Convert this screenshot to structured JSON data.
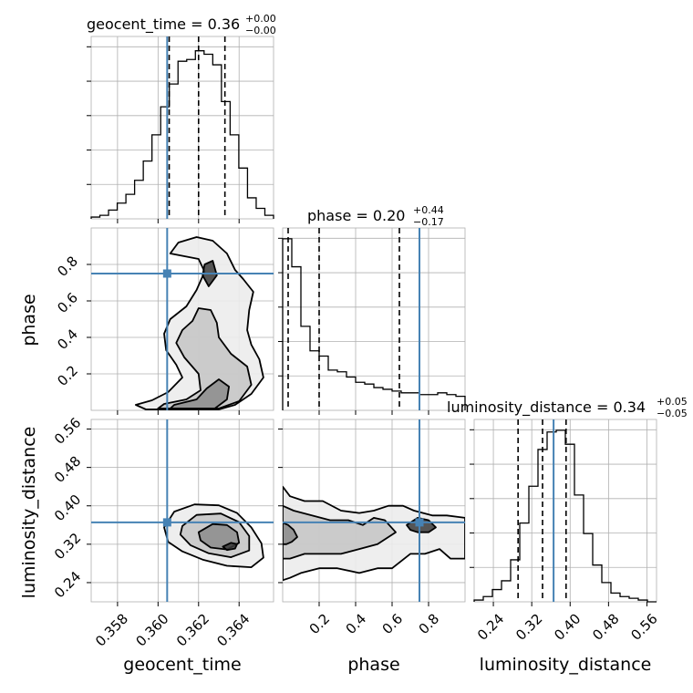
{
  "chart_data": {
    "type": "corner",
    "truth_color": "#4682b4",
    "hist_color": "#000000",
    "parameters": [
      {
        "name": "geocent_time",
        "title_prefix": "geocent_time = 0.36",
        "title_sup": "+0.00",
        "title_sub": "−0.00",
        "range": [
          0.3567,
          0.3657
        ],
        "ticks": [
          0.358,
          0.36,
          0.362,
          0.364
        ],
        "tick_labels": [
          "0.358",
          "0.360",
          "0.362",
          "0.364"
        ],
        "truth": 0.36045,
        "quantiles": [
          0.36055,
          0.362,
          0.3633
        ],
        "hist": [
          0.01,
          0.02,
          0.05,
          0.09,
          0.14,
          0.22,
          0.33,
          0.48,
          0.64,
          0.77,
          0.9,
          0.91,
          0.96,
          0.94,
          0.88,
          0.67,
          0.48,
          0.29,
          0.12,
          0.06,
          0.02
        ]
      },
      {
        "name": "phase",
        "title_prefix": "phase = 0.20",
        "title_sup": "+0.44",
        "title_sub": "−0.17",
        "range": [
          0.0,
          1.0
        ],
        "ticks": [
          0.2,
          0.4,
          0.6,
          0.8
        ],
        "tick_labels": [
          "0.2",
          "0.4",
          "0.6",
          "0.8"
        ],
        "truth": 0.75,
        "quantiles": [
          0.03,
          0.2,
          0.64
        ],
        "hist": [
          0.98,
          0.82,
          0.48,
          0.34,
          0.31,
          0.23,
          0.22,
          0.19,
          0.16,
          0.15,
          0.13,
          0.12,
          0.11,
          0.1,
          0.1,
          0.09,
          0.09,
          0.1,
          0.09,
          0.08
        ]
      },
      {
        "name": "luminosity_distance",
        "title_prefix": "luminosity_distance = 0.34",
        "title_sup": "+0.05",
        "title_sub": "−0.05",
        "range": [
          0.2,
          0.58
        ],
        "ticks": [
          0.24,
          0.32,
          0.4,
          0.48,
          0.56
        ],
        "tick_labels": [
          "0.24",
          "0.32",
          "0.40",
          "0.48",
          "0.56"
        ],
        "truth": 0.3655,
        "quantiles": [
          0.2915,
          0.3425,
          0.3915
        ],
        "hist": [
          0.01,
          0.03,
          0.07,
          0.12,
          0.24,
          0.45,
          0.66,
          0.87,
          0.97,
          0.98,
          0.9,
          0.61,
          0.39,
          0.21,
          0.11,
          0.05,
          0.03,
          0.02,
          0.01,
          0.0
        ]
      }
    ],
    "contours": {
      "phase_vs_geocent_time": {
        "x_param": "geocent_time",
        "y_param": "phase",
        "truth_point": [
          0.36045,
          0.75
        ],
        "levels": [
          [
            [
              0.363,
              0.005
            ],
            [
              0.3638,
              0.03
            ],
            [
              0.3646,
              0.09
            ],
            [
              0.3652,
              0.18
            ],
            [
              0.365,
              0.28
            ],
            [
              0.3646,
              0.36
            ],
            [
              0.3644,
              0.44
            ],
            [
              0.3645,
              0.55
            ],
            [
              0.3647,
              0.65
            ],
            [
              0.3642,
              0.72
            ],
            [
              0.3638,
              0.77
            ],
            [
              0.3634,
              0.86
            ],
            [
              0.3627,
              0.93
            ],
            [
              0.3619,
              0.95
            ],
            [
              0.361,
              0.92
            ],
            [
              0.3606,
              0.86
            ],
            [
              0.362,
              0.83
            ],
            [
              0.3623,
              0.76
            ],
            [
              0.3619,
              0.66
            ],
            [
              0.3614,
              0.57
            ],
            [
              0.3606,
              0.5
            ],
            [
              0.3603,
              0.42
            ],
            [
              0.3604,
              0.33
            ],
            [
              0.3609,
              0.25
            ],
            [
              0.3612,
              0.18
            ],
            [
              0.3605,
              0.1
            ],
            [
              0.3597,
              0.055
            ],
            [
              0.3589,
              0.03
            ],
            [
              0.3594,
              0.005
            ]
          ],
          [
            [
              0.363,
              0.01
            ],
            [
              0.364,
              0.05
            ],
            [
              0.3646,
              0.14
            ],
            [
              0.3644,
              0.24
            ],
            [
              0.3636,
              0.31
            ],
            [
              0.363,
              0.4
            ],
            [
              0.3629,
              0.48
            ],
            [
              0.3626,
              0.55
            ],
            [
              0.362,
              0.56
            ],
            [
              0.3617,
              0.49
            ],
            [
              0.3612,
              0.44
            ],
            [
              0.3609,
              0.37
            ],
            [
              0.3613,
              0.29
            ],
            [
              0.362,
              0.2
            ],
            [
              0.3621,
              0.11
            ],
            [
              0.3614,
              0.06
            ],
            [
              0.3603,
              0.035
            ],
            [
              0.36,
              0.01
            ]
          ],
          [
            [
              0.3628,
              0.01
            ],
            [
              0.3634,
              0.06
            ],
            [
              0.3635,
              0.13
            ],
            [
              0.363,
              0.17
            ],
            [
              0.3624,
              0.12
            ],
            [
              0.3619,
              0.06
            ],
            [
              0.3608,
              0.03
            ],
            [
              0.3606,
              0.01
            ]
          ],
          [
            [
              0.3625,
              0.68
            ],
            [
              0.3629,
              0.74
            ],
            [
              0.3627,
              0.82
            ],
            [
              0.3623,
              0.8
            ],
            [
              0.3622,
              0.74
            ]
          ]
        ]
      },
      "luminosity_distance_vs_geocent_time": {
        "x_param": "geocent_time",
        "y_param": "luminosity_distance",
        "truth_point": [
          0.36045,
          0.3655
        ],
        "levels": [
          [
            [
              0.3603,
              0.355
            ],
            [
              0.3608,
              0.388
            ],
            [
              0.3618,
              0.403
            ],
            [
              0.363,
              0.401
            ],
            [
              0.3639,
              0.385
            ],
            [
              0.3646,
              0.355
            ],
            [
              0.3651,
              0.322
            ],
            [
              0.3652,
              0.292
            ],
            [
              0.3646,
              0.272
            ],
            [
              0.3634,
              0.275
            ],
            [
              0.3622,
              0.288
            ],
            [
              0.3612,
              0.305
            ],
            [
              0.3605,
              0.325
            ]
          ],
          [
            [
              0.3612,
              0.358
            ],
            [
              0.3619,
              0.381
            ],
            [
              0.3631,
              0.384
            ],
            [
              0.364,
              0.366
            ],
            [
              0.3645,
              0.337
            ],
            [
              0.3645,
              0.307
            ],
            [
              0.3636,
              0.293
            ],
            [
              0.3625,
              0.301
            ],
            [
              0.3616,
              0.318
            ],
            [
              0.3611,
              0.34
            ]
          ],
          [
            [
              0.362,
              0.345
            ],
            [
              0.3627,
              0.362
            ],
            [
              0.3634,
              0.36
            ],
            [
              0.3639,
              0.345
            ],
            [
              0.364,
              0.323
            ],
            [
              0.3634,
              0.309
            ],
            [
              0.3626,
              0.313
            ],
            [
              0.3621,
              0.328
            ]
          ],
          [
            [
              0.3632,
              0.315
            ],
            [
              0.3636,
              0.323
            ],
            [
              0.3639,
              0.32
            ],
            [
              0.3638,
              0.311
            ],
            [
              0.3634,
              0.308
            ]
          ]
        ]
      },
      "luminosity_distance_vs_phase": {
        "x_param": "phase",
        "y_param": "luminosity_distance",
        "truth_point": [
          0.75,
          0.3655
        ],
        "levels": [
          [
            [
              0.0,
              0.44
            ],
            [
              0.04,
              0.42
            ],
            [
              0.12,
              0.41
            ],
            [
              0.22,
              0.41
            ],
            [
              0.32,
              0.39
            ],
            [
              0.42,
              0.385
            ],
            [
              0.5,
              0.39
            ],
            [
              0.58,
              0.4
            ],
            [
              0.66,
              0.4
            ],
            [
              0.72,
              0.39
            ],
            [
              0.82,
              0.38
            ],
            [
              0.9,
              0.38
            ],
            [
              1.0,
              0.375
            ],
            [
              1.0,
              0.29
            ],
            [
              0.92,
              0.29
            ],
            [
              0.86,
              0.31
            ],
            [
              0.78,
              0.3
            ],
            [
              0.7,
              0.3
            ],
            [
              0.6,
              0.27
            ],
            [
              0.52,
              0.27
            ],
            [
              0.42,
              0.26
            ],
            [
              0.3,
              0.27
            ],
            [
              0.2,
              0.27
            ],
            [
              0.1,
              0.26
            ],
            [
              0.04,
              0.25
            ],
            [
              0.0,
              0.245
            ]
          ],
          [
            [
              0.0,
              0.4
            ],
            [
              0.06,
              0.39
            ],
            [
              0.16,
              0.38
            ],
            [
              0.26,
              0.37
            ],
            [
              0.36,
              0.37
            ],
            [
              0.44,
              0.36
            ],
            [
              0.5,
              0.375
            ],
            [
              0.56,
              0.37
            ],
            [
              0.62,
              0.345
            ],
            [
              0.52,
              0.32
            ],
            [
              0.42,
              0.31
            ],
            [
              0.32,
              0.3
            ],
            [
              0.22,
              0.3
            ],
            [
              0.12,
              0.3
            ],
            [
              0.04,
              0.29
            ],
            [
              0.0,
              0.29
            ]
          ],
          [
            [
              0.0,
              0.365
            ],
            [
              0.03,
              0.36
            ],
            [
              0.06,
              0.35
            ],
            [
              0.08,
              0.335
            ],
            [
              0.05,
              0.325
            ],
            [
              0.02,
              0.32
            ],
            [
              0.0,
              0.32
            ]
          ],
          [
            [
              0.68,
              0.36
            ],
            [
              0.74,
              0.375
            ],
            [
              0.8,
              0.37
            ],
            [
              0.84,
              0.355
            ],
            [
              0.8,
              0.345
            ],
            [
              0.74,
              0.345
            ],
            [
              0.7,
              0.35
            ]
          ]
        ]
      }
    }
  }
}
